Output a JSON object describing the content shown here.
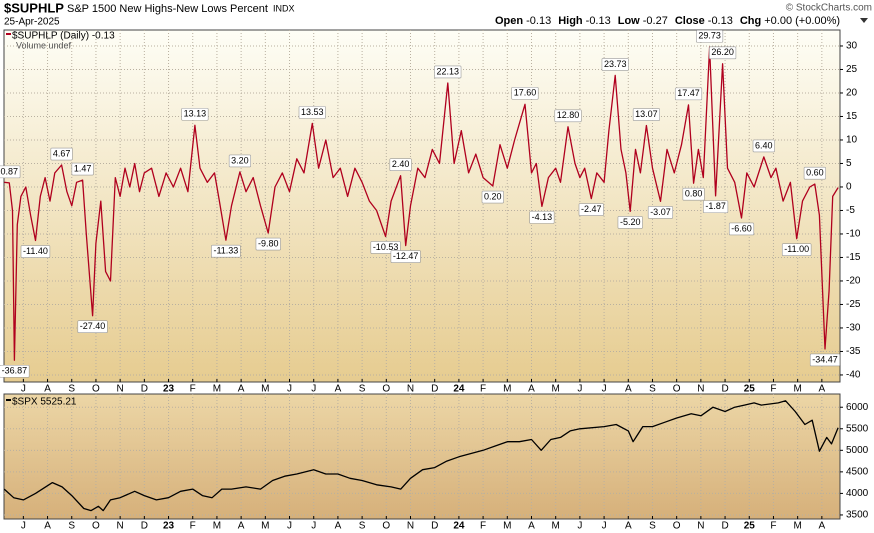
{
  "header": {
    "symbol": "$SUPHLP",
    "name": "S&P 1500 New Highs-New Lows Percent",
    "exchange": "INDX",
    "date": "25-Apr-2025",
    "quote": [
      {
        "label": "Open",
        "value": "-0.13"
      },
      {
        "label": "High",
        "value": "-0.13"
      },
      {
        "label": "Low",
        "value": "-0.27"
      },
      {
        "label": "Close",
        "value": "-0.13"
      },
      {
        "label": "Chg",
        "value": "+0.00 (+0.00%)"
      }
    ],
    "credit": "© StockCharts.com",
    "volume_note": "Volume undef"
  },
  "chart_data": [
    {
      "type": "line",
      "x": [
        0.21,
        0.42,
        0.55,
        0.63,
        0.75,
        0.9,
        1.1,
        1.3,
        1.5,
        1.7,
        1.9,
        2.1,
        2.3,
        2.58,
        2.8,
        3.0,
        3.2,
        3.45,
        3.6,
        3.86,
        4.0,
        4.2,
        4.4,
        4.6,
        4.8,
        5.0,
        5.2,
        5.4,
        5.6,
        5.8,
        6.0,
        6.3,
        6.6,
        6.9,
        7.2,
        7.5,
        7.8,
        8.09,
        8.3,
        8.6,
        8.9,
        9.1,
        9.37,
        9.6,
        9.95,
        10.2,
        10.5,
        10.8,
        11.12,
        11.4,
        11.7,
        12.0,
        12.3,
        12.6,
        12.94,
        13.2,
        13.5,
        13.8,
        14.1,
        14.4,
        14.7,
        15.0,
        15.3,
        15.6,
        15.97,
        16.2,
        16.59,
        16.8,
        17.0,
        17.3,
        17.6,
        17.9,
        18.2,
        18.54,
        18.8,
        19.1,
        19.4,
        19.7,
        20.0,
        20.4,
        20.7,
        21.0,
        21.3,
        21.73,
        22.0,
        22.2,
        22.43,
        22.7,
        23.0,
        23.2,
        23.51,
        23.8,
        24.0,
        24.2,
        24.47,
        24.7,
        25.0,
        25.2,
        25.46,
        25.7,
        25.9,
        26.08,
        26.3,
        26.5,
        26.75,
        27.0,
        27.33,
        27.6,
        27.9,
        28.2,
        28.49,
        28.7,
        28.9,
        29.1,
        29.36,
        29.61,
        29.9,
        30.1,
        30.4,
        30.68,
        30.9,
        31.2,
        31.6,
        31.9,
        32.1,
        32.4,
        32.7,
        32.96,
        33.2,
        33.5,
        33.71,
        33.9,
        34.13,
        34.3,
        34.45,
        34.67
      ],
      "series": [
        {
          "name": "$SUPHLP (Daily) -0.13",
          "color": "#b0001e",
          "values": [
            1,
            0.87,
            -5,
            -36.87,
            -8,
            -2,
            0,
            -6,
            -11.4,
            -2,
            2,
            -3,
            3,
            4.67,
            -1,
            -4,
            1,
            1.47,
            -10,
            -27.4,
            -12,
            -3,
            -18,
            -20,
            2,
            -2,
            4,
            0,
            5,
            -1,
            3,
            4,
            -2,
            3,
            0,
            4,
            -1,
            13.13,
            4,
            1,
            3,
            -3,
            -11.33,
            -4,
            3.2,
            -1,
            2,
            -4,
            -9.8,
            0,
            3,
            -1,
            6,
            3,
            13.53,
            4,
            10,
            2,
            4,
            -2,
            4,
            1,
            -3,
            -5,
            -10.53,
            -3,
            2.4,
            -12.47,
            -4,
            4,
            2,
            8,
            5,
            22.13,
            5,
            12,
            3,
            7,
            2,
            0.2,
            9,
            4,
            10,
            17.6,
            3,
            5,
            -4.13,
            2,
            4,
            1,
            12.8,
            5,
            2,
            4,
            -2.47,
            3,
            1,
            12,
            23.73,
            8,
            3,
            -5.2,
            8,
            3,
            13.07,
            4,
            -3.07,
            8,
            3,
            9,
            17.47,
            0.8,
            8,
            2,
            29.73,
            -1.87,
            26.2,
            4,
            1,
            -6.6,
            3,
            0,
            6.4,
            2,
            4,
            -3,
            1,
            -11,
            -3,
            0,
            0.6,
            -6,
            -34.47,
            -22,
            -2,
            -0.13
          ],
          "value_labels": [
            null,
            "0.87",
            null,
            "-36.87",
            null,
            null,
            null,
            null,
            "-11.40",
            null,
            null,
            null,
            null,
            "4.67",
            null,
            null,
            null,
            "1.47",
            null,
            "-27.40",
            null,
            null,
            null,
            null,
            null,
            null,
            null,
            null,
            null,
            null,
            null,
            null,
            null,
            null,
            null,
            null,
            null,
            "13.13",
            null,
            null,
            null,
            null,
            "-11.33",
            null,
            "3.20",
            null,
            null,
            null,
            "-9.80",
            null,
            null,
            null,
            null,
            null,
            "13.53",
            null,
            null,
            null,
            null,
            null,
            null,
            null,
            null,
            null,
            "-10.53",
            null,
            "2.40",
            "-12.47",
            null,
            null,
            null,
            null,
            null,
            "22.13",
            null,
            null,
            null,
            null,
            null,
            "0.20",
            null,
            null,
            null,
            "17.60",
            null,
            null,
            "-4.13",
            null,
            null,
            null,
            "12.80",
            null,
            null,
            null,
            "-2.47",
            null,
            null,
            null,
            "23.73",
            null,
            null,
            "-5.20",
            null,
            null,
            "13.07",
            null,
            "-3.07",
            null,
            null,
            null,
            "17.47",
            "0.80",
            null,
            null,
            "29.73",
            "-1.87",
            "26.20",
            null,
            null,
            "-6.60",
            null,
            null,
            "6.40",
            null,
            null,
            null,
            null,
            "-11.00",
            null,
            null,
            "0.60",
            null,
            "-34.47",
            null,
            null,
            null
          ]
        }
      ],
      "xlim": [
        0.2,
        34.75
      ],
      "xticks": [
        {
          "value": 1,
          "label": "J"
        },
        {
          "value": 2,
          "label": "A"
        },
        {
          "value": 3,
          "label": "S"
        },
        {
          "value": 4,
          "label": "O"
        },
        {
          "value": 5,
          "label": "N"
        },
        {
          "value": 6,
          "label": "D"
        },
        {
          "value": 7,
          "label": "23"
        },
        {
          "value": 8,
          "label": "F"
        },
        {
          "value": 9,
          "label": "M"
        },
        {
          "value": 10,
          "label": "A"
        },
        {
          "value": 11,
          "label": "M"
        },
        {
          "value": 12,
          "label": "J"
        },
        {
          "value": 13,
          "label": "J"
        },
        {
          "value": 14,
          "label": "A"
        },
        {
          "value": 15,
          "label": "S"
        },
        {
          "value": 16,
          "label": "O"
        },
        {
          "value": 17,
          "label": "N"
        },
        {
          "value": 18,
          "label": "D"
        },
        {
          "value": 19,
          "label": "24"
        },
        {
          "value": 20,
          "label": "F"
        },
        {
          "value": 21,
          "label": "M"
        },
        {
          "value": 22,
          "label": "A"
        },
        {
          "value": 23,
          "label": "M"
        },
        {
          "value": 24,
          "label": "J"
        },
        {
          "value": 25,
          "label": "J"
        },
        {
          "value": 26,
          "label": "A"
        },
        {
          "value": 27,
          "label": "S"
        },
        {
          "value": 28,
          "label": "O"
        },
        {
          "value": 29,
          "label": "N"
        },
        {
          "value": 30,
          "label": "D"
        },
        {
          "value": 31,
          "label": "25"
        },
        {
          "value": 32,
          "label": "F"
        },
        {
          "value": 33,
          "label": "M"
        },
        {
          "value": 34,
          "label": "A"
        }
      ],
      "ylim": [
        -41.5,
        33.4
      ],
      "yticks": [
        30,
        25,
        20,
        15,
        10,
        5,
        0,
        -5,
        -10,
        -15,
        -20,
        -25,
        -30,
        -35,
        -40
      ],
      "grid": true
    },
    {
      "type": "line",
      "x": [
        0.21,
        0.6,
        1.0,
        1.5,
        2.2,
        2.6,
        3.0,
        3.5,
        3.8,
        4.1,
        4.3,
        4.6,
        5.0,
        5.6,
        6.0,
        6.5,
        7.0,
        7.5,
        8.0,
        8.4,
        8.8,
        9.2,
        9.6,
        10.2,
        10.8,
        11.3,
        11.8,
        12.3,
        13.0,
        13.5,
        14.0,
        14.5,
        15.0,
        15.6,
        16.2,
        16.6,
        17.0,
        17.5,
        18.0,
        18.5,
        19.0,
        20.0,
        20.5,
        21.0,
        21.5,
        22.0,
        22.4,
        22.8,
        23.2,
        23.6,
        24.0,
        25.0,
        25.5,
        26.0,
        26.2,
        26.6,
        27.0,
        27.5,
        28.0,
        28.6,
        29.0,
        29.5,
        30.0,
        30.4,
        30.8,
        31.2,
        31.5,
        32.2,
        32.5,
        32.9,
        33.3,
        33.6,
        33.9,
        34.2,
        34.4,
        34.67
      ],
      "series": [
        {
          "name": "$SPX 5525.21",
          "color": "#000000",
          "values": [
            4100,
            3900,
            3850,
            4000,
            4250,
            4150,
            3950,
            3650,
            3600,
            3700,
            3600,
            3850,
            3900,
            4050,
            3950,
            3850,
            3900,
            4050,
            4100,
            3950,
            3900,
            4100,
            4100,
            4150,
            4100,
            4300,
            4400,
            4450,
            4550,
            4450,
            4450,
            4350,
            4300,
            4200,
            4150,
            4100,
            4350,
            4550,
            4600,
            4750,
            4850,
            5000,
            5100,
            5200,
            5200,
            5250,
            5000,
            5250,
            5300,
            5450,
            5500,
            5550,
            5600,
            5450,
            5200,
            5550,
            5550,
            5650,
            5750,
            5850,
            5800,
            6000,
            5900,
            6000,
            6050,
            6100,
            6050,
            6100,
            6150,
            5900,
            5600,
            5700,
            4980,
            5300,
            5150,
            5525
          ]
        }
      ],
      "xlim": [
        0.2,
        34.75
      ],
      "xticks": [
        {
          "value": 1,
          "label": "J"
        },
        {
          "value": 2,
          "label": "A"
        },
        {
          "value": 3,
          "label": "S"
        },
        {
          "value": 4,
          "label": "O"
        },
        {
          "value": 5,
          "label": "N"
        },
        {
          "value": 6,
          "label": "D"
        },
        {
          "value": 7,
          "label": "23"
        },
        {
          "value": 8,
          "label": "F"
        },
        {
          "value": 9,
          "label": "M"
        },
        {
          "value": 10,
          "label": "A"
        },
        {
          "value": 11,
          "label": "M"
        },
        {
          "value": 12,
          "label": "J"
        },
        {
          "value": 13,
          "label": "J"
        },
        {
          "value": 14,
          "label": "A"
        },
        {
          "value": 15,
          "label": "S"
        },
        {
          "value": 16,
          "label": "O"
        },
        {
          "value": 17,
          "label": "N"
        },
        {
          "value": 18,
          "label": "D"
        },
        {
          "value": 19,
          "label": "24"
        },
        {
          "value": 20,
          "label": "F"
        },
        {
          "value": 21,
          "label": "M"
        },
        {
          "value": 22,
          "label": "A"
        },
        {
          "value": 23,
          "label": "M"
        },
        {
          "value": 24,
          "label": "J"
        },
        {
          "value": 25,
          "label": "J"
        },
        {
          "value": 26,
          "label": "A"
        },
        {
          "value": 27,
          "label": "S"
        },
        {
          "value": 28,
          "label": "O"
        },
        {
          "value": 29,
          "label": "N"
        },
        {
          "value": 30,
          "label": "D"
        },
        {
          "value": 31,
          "label": "25"
        },
        {
          "value": 32,
          "label": "F"
        },
        {
          "value": 33,
          "label": "M"
        },
        {
          "value": 34,
          "label": "A"
        }
      ],
      "ylim": [
        3406,
        6307
      ],
      "yticks": [
        6000,
        5500,
        5000,
        4500,
        4000,
        3500
      ],
      "grid": true
    }
  ]
}
